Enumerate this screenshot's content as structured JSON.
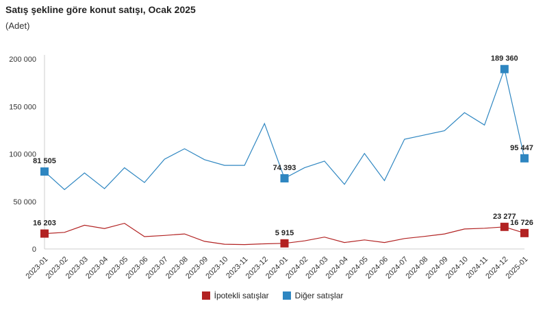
{
  "title": "Satış şekline göre konut satışı, Ocak 2025",
  "subtitle": "(Adet)",
  "chart_data": {
    "type": "line",
    "title": "Satış şekline göre konut satışı, Ocak 2025",
    "ylabel": "(Adet)",
    "ylim": [
      0,
      200000
    ],
    "yticks": [
      0,
      50000,
      100000,
      150000,
      200000
    ],
    "ytick_labels": [
      "0",
      "50 000",
      "100 000",
      "150 000",
      "200 000"
    ],
    "grid": false,
    "legend_position": "bottom-center",
    "categories": [
      "2023-01",
      "2023-02",
      "2023-03",
      "2023-04",
      "2023-05",
      "2023-06",
      "2023-07",
      "2023-08",
      "2023-09",
      "2023-10",
      "2023-11",
      "2023-12",
      "2024-01",
      "2024-02",
      "2024-03",
      "2024-04",
      "2024-05",
      "2024-06",
      "2024-07",
      "2024-08",
      "2024-09",
      "2024-10",
      "2024-11",
      "2024-12",
      "2025-01"
    ],
    "series": [
      {
        "name": "İpotekli satışlar",
        "color": "#b22222",
        "values": [
          16203,
          17500,
          25000,
          21500,
          27000,
          13000,
          14200,
          15800,
          8000,
          5000,
          4600,
          5400,
          5915,
          8500,
          12500,
          6800,
          9500,
          6800,
          11000,
          13200,
          15800,
          21000,
          21800,
          23277,
          16726
        ],
        "markers": [
          {
            "index": 0,
            "label": "16 203"
          },
          {
            "index": 12,
            "label": "5 915"
          },
          {
            "index": 23,
            "label": "23 277"
          },
          {
            "index": 24,
            "label": "16 726"
          }
        ]
      },
      {
        "name": "Diğer satışlar",
        "color": "#2e86c1",
        "values": [
          81505,
          62500,
          80000,
          63500,
          85500,
          70000,
          94500,
          105500,
          94000,
          88000,
          88000,
          132000,
          74393,
          85500,
          92500,
          68000,
          100500,
          72000,
          115500,
          120000,
          124500,
          143500,
          130500,
          189360,
          95447
        ],
        "markers": [
          {
            "index": 0,
            "label": "81 505"
          },
          {
            "index": 12,
            "label": "74 393"
          },
          {
            "index": 23,
            "label": "189 360"
          },
          {
            "index": 24,
            "label": "95 447"
          }
        ]
      }
    ]
  }
}
